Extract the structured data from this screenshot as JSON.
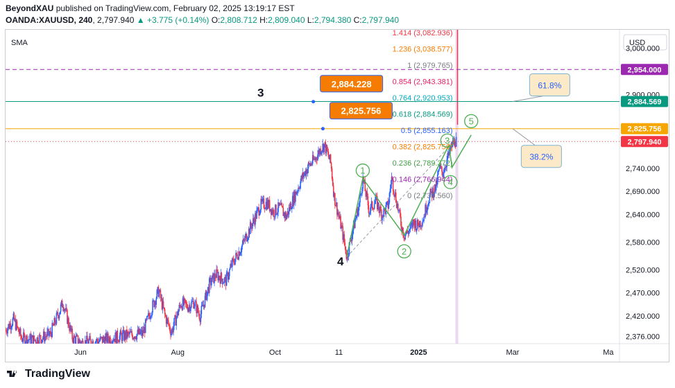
{
  "header": {
    "author": "BeyondXAU",
    "published_text": "published on TradingView.com, February 02, 2025 13:19:17 EST"
  },
  "quote": {
    "symbol": "OANDA:XAUUSD, 240",
    "last": "2,797.940",
    "change": "▲ +3.775 (+0.14%)",
    "o_label": "O:",
    "o": "2,808.712",
    "h_label": "H:",
    "h": "2,809.040",
    "l_label": "L:",
    "l": "2,794.380",
    "c_label": "C:",
    "c": "2,797.940",
    "up_color": "#089981"
  },
  "footer": {
    "brand": "TradingView"
  },
  "chart_data": {
    "type": "candlestick",
    "indicator_label": "SMA",
    "currency": "USD",
    "ylim": [
      2360,
      3040
    ],
    "y_ticks": [
      2376,
      2420,
      2470,
      2520,
      2580,
      2640,
      2690,
      2740,
      2900,
      3000
    ],
    "y_tick_labels": [
      "2,376.000",
      "2,420.000",
      "2,470.000",
      "2,520.000",
      "2,580.000",
      "2,640.000",
      "2,690.000",
      "2,740.000",
      "2,900.000",
      "3,000.000"
    ],
    "x_ticks": [
      {
        "label": "Jun",
        "day": 47
      },
      {
        "label": "Aug",
        "day": 108
      },
      {
        "label": "Oct",
        "day": 169
      },
      {
        "label": "11",
        "day": 209
      },
      {
        "label": "2025",
        "day": 259
      },
      {
        "label": "Mar",
        "day": 318
      },
      {
        "label": "Ma",
        "day": 378
      }
    ],
    "price_path": [
      [
        0,
        2390
      ],
      [
        5,
        2412
      ],
      [
        10,
        2372
      ],
      [
        18,
        2368
      ],
      [
        28,
        2380
      ],
      [
        36,
        2450
      ],
      [
        42,
        2372
      ],
      [
        48,
        2362
      ],
      [
        58,
        2366
      ],
      [
        66,
        2372
      ],
      [
        76,
        2378
      ],
      [
        86,
        2382
      ],
      [
        92,
        2440
      ],
      [
        96,
        2475
      ],
      [
        100,
        2420
      ],
      [
        104,
        2385
      ],
      [
        110,
        2448
      ],
      [
        114,
        2440
      ],
      [
        118,
        2450
      ],
      [
        122,
        2420
      ],
      [
        128,
        2490
      ],
      [
        132,
        2510
      ],
      [
        138,
        2495
      ],
      [
        142,
        2532
      ],
      [
        148,
        2570
      ],
      [
        152,
        2600
      ],
      [
        156,
        2630
      ],
      [
        160,
        2660
      ],
      [
        164,
        2665
      ],
      [
        168,
        2645
      ],
      [
        172,
        2655
      ],
      [
        176,
        2635
      ],
      [
        180,
        2670
      ],
      [
        186,
        2720
      ],
      [
        190,
        2745
      ],
      [
        194,
        2760
      ],
      [
        198,
        2785
      ],
      [
        200,
        2790
      ],
      [
        204,
        2750
      ],
      [
        206,
        2680
      ],
      [
        208,
        2650
      ],
      [
        211,
        2605
      ],
      [
        214,
        2548
      ],
      [
        218,
        2610
      ],
      [
        222,
        2665
      ],
      [
        224,
        2718
      ],
      [
        228,
        2648
      ],
      [
        232,
        2670
      ],
      [
        236,
        2640
      ],
      [
        240,
        2660
      ],
      [
        242,
        2720
      ],
      [
        246,
        2655
      ],
      [
        248,
        2620
      ],
      [
        250,
        2595
      ],
      [
        254,
        2608
      ],
      [
        256,
        2625
      ],
      [
        258,
        2615
      ],
      [
        262,
        2632
      ],
      [
        264,
        2660
      ],
      [
        266,
        2680
      ],
      [
        270,
        2700
      ],
      [
        272,
        2740
      ],
      [
        274,
        2730
      ],
      [
        276,
        2750
      ],
      [
        278,
        2770
      ],
      [
        280,
        2790
      ],
      [
        282,
        2800
      ],
      [
        283,
        2798
      ]
    ],
    "price_lines": [
      {
        "label": "2,954.000",
        "value": 2954,
        "color": "#9c27b0",
        "style": "dashed"
      },
      {
        "label": "2,884.569",
        "value": 2884.569,
        "color": "#089981",
        "style": "solid"
      },
      {
        "label": "2,825.756",
        "value": 2825.756,
        "color": "#f7a600",
        "style": "solid"
      },
      {
        "label": "2,797.940",
        "value": 2797.94,
        "color": "#f23645",
        "style": "dotted"
      }
    ],
    "fib_levels": [
      {
        "ratio": "1.414",
        "value": "3,082.936",
        "color": "#f23645"
      },
      {
        "ratio": "1.236",
        "value": "3,038.577",
        "color": "#f57c00"
      },
      {
        "ratio": "1",
        "value": "2,979.765",
        "color": "#787b86"
      },
      {
        "ratio": "0.854",
        "value": "2,943.381",
        "color": "#e91e63"
      },
      {
        "ratio": "0.764",
        "value": "2,920.953",
        "color": "#00acc1"
      },
      {
        "ratio": "0.618",
        "value": "2,884.569",
        "color": "#089981"
      },
      {
        "ratio": "0.5",
        "value": "2,855.163",
        "color": "#2962ff"
      },
      {
        "ratio": "0.382",
        "value": "2,825.756",
        "color": "#f57c00"
      },
      {
        "ratio": "0.236",
        "value": "2,789.372",
        "color": "#43a047"
      },
      {
        "ratio": "0.146",
        "value": "2,766.944",
        "color": "#9c27b0"
      },
      {
        "ratio": "0",
        "value": "2,730.560",
        "color": "#787b86"
      }
    ],
    "wave_labels": [
      {
        "text": "1",
        "day": 224,
        "price": 2735
      },
      {
        "text": "2",
        "day": 250,
        "price": 2560
      },
      {
        "text": "3",
        "day": 277,
        "price": 2800
      },
      {
        "text": "4",
        "day": 279,
        "price": 2710
      },
      {
        "text": "5",
        "day": 292,
        "price": 2842
      }
    ],
    "wave_path": [
      [
        214,
        2548
      ],
      [
        224,
        2718
      ],
      [
        250,
        2595
      ],
      [
        278,
        2790
      ],
      [
        280,
        2742
      ],
      [
        292,
        2812
      ]
    ],
    "plain_labels": [
      {
        "text": "3",
        "day": 160,
        "price": 2895
      },
      {
        "text": "4",
        "day": 210,
        "price": 2530
      }
    ],
    "callouts": [
      {
        "text": "2,884.228",
        "day": 193,
        "price": 2884.228
      },
      {
        "text": "2,825.756",
        "day": 199,
        "price": 2825.756
      }
    ],
    "percent_boxes": [
      {
        "text": "61.8%",
        "day": 326,
        "price": 2884.569
      },
      {
        "text": "38.2%",
        "day": 326,
        "price": 2825.756
      }
    ]
  }
}
